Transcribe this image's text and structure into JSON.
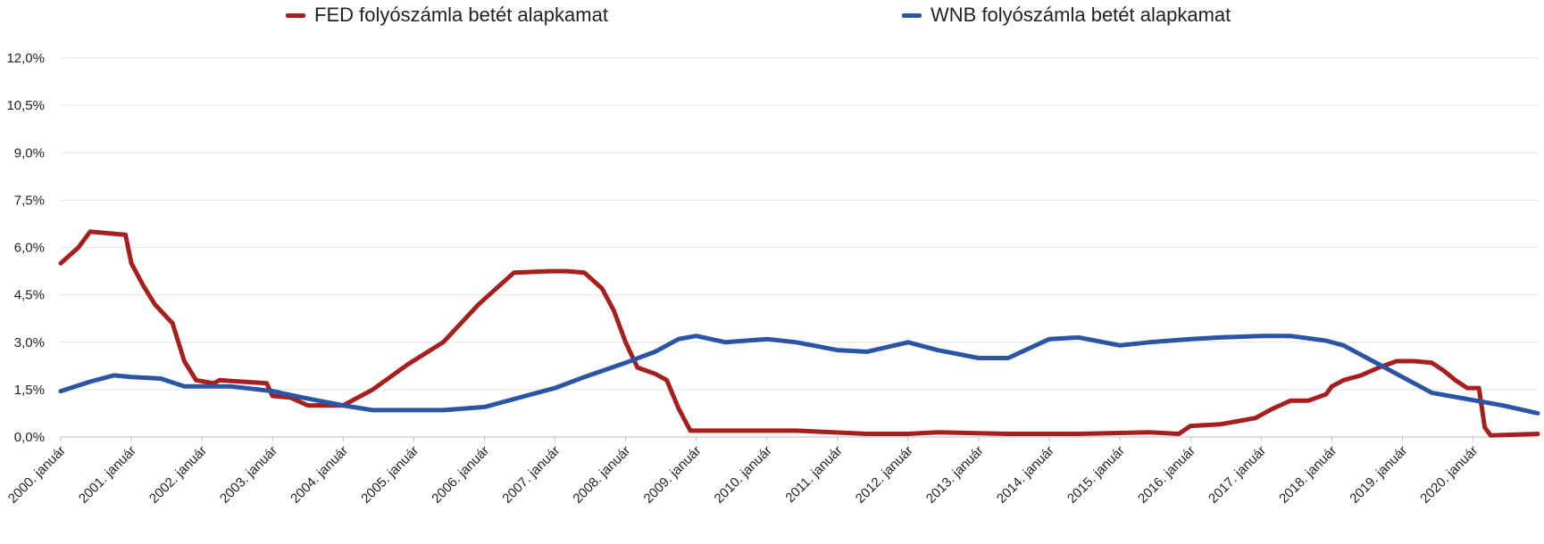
{
  "chart_data": {
    "type": "line",
    "title": "",
    "xlabel": "",
    "ylabel": "",
    "ylim": [
      0,
      12
    ],
    "grid": true,
    "legend_position": "top",
    "y_ticks": [
      "0,0%",
      "1,5%",
      "3,0%",
      "4,5%",
      "6,0%",
      "7,5%",
      "9,0%",
      "10,5%",
      "12,0%"
    ],
    "x_ticks": [
      "2000. január",
      "2001. január",
      "2002. január",
      "2003. január",
      "2004. január",
      "2005. január",
      "2006. január",
      "2007. január",
      "2008. január",
      "2009. január",
      "2010. január",
      "2011. január",
      "2012. január",
      "2013. január",
      "2014. január",
      "2015. január",
      "2016. január",
      "2017. január",
      "2018. január",
      "2019. január",
      "2020. január"
    ],
    "x_start": "2000-01",
    "x_end": "2020-12",
    "series": [
      {
        "name": "FED folyószámla betét alapkamat",
        "color": "#A61E1E",
        "points": [
          [
            "2000-01",
            5.5
          ],
          [
            "2000-04",
            6.0
          ],
          [
            "2000-06",
            6.5
          ],
          [
            "2000-12",
            6.4
          ],
          [
            "2001-01",
            5.5
          ],
          [
            "2001-03",
            4.8
          ],
          [
            "2001-05",
            4.2
          ],
          [
            "2001-08",
            3.6
          ],
          [
            "2001-10",
            2.4
          ],
          [
            "2001-12",
            1.8
          ],
          [
            "2002-03",
            1.7
          ],
          [
            "2002-04",
            1.8
          ],
          [
            "2002-12",
            1.7
          ],
          [
            "2003-01",
            1.3
          ],
          [
            "2003-04",
            1.25
          ],
          [
            "2003-07",
            1.0
          ],
          [
            "2003-12",
            1.0
          ],
          [
            "2004-01",
            1.0
          ],
          [
            "2004-06",
            1.5
          ],
          [
            "2004-12",
            2.3
          ],
          [
            "2005-06",
            3.0
          ],
          [
            "2005-12",
            4.2
          ],
          [
            "2006-06",
            5.2
          ],
          [
            "2006-12",
            5.25
          ],
          [
            "2007-03",
            5.25
          ],
          [
            "2007-06",
            5.2
          ],
          [
            "2007-09",
            4.7
          ],
          [
            "2007-11",
            4.0
          ],
          [
            "2008-01",
            3.0
          ],
          [
            "2008-03",
            2.2
          ],
          [
            "2008-06",
            2.0
          ],
          [
            "2008-08",
            1.8
          ],
          [
            "2008-10",
            0.9
          ],
          [
            "2008-12",
            0.2
          ],
          [
            "2009-06",
            0.2
          ],
          [
            "2010-06",
            0.2
          ],
          [
            "2011-06",
            0.1
          ],
          [
            "2012-01",
            0.1
          ],
          [
            "2012-06",
            0.15
          ],
          [
            "2013-06",
            0.1
          ],
          [
            "2014-06",
            0.1
          ],
          [
            "2015-06",
            0.15
          ],
          [
            "2015-11",
            0.1
          ],
          [
            "2016-01",
            0.35
          ],
          [
            "2016-06",
            0.4
          ],
          [
            "2016-12",
            0.6
          ],
          [
            "2017-03",
            0.9
          ],
          [
            "2017-06",
            1.15
          ],
          [
            "2017-09",
            1.15
          ],
          [
            "2017-12",
            1.35
          ],
          [
            "2018-01",
            1.6
          ],
          [
            "2018-03",
            1.8
          ],
          [
            "2018-06",
            1.95
          ],
          [
            "2018-09",
            2.2
          ],
          [
            "2018-12",
            2.4
          ],
          [
            "2019-03",
            2.4
          ],
          [
            "2019-06",
            2.35
          ],
          [
            "2019-08",
            2.1
          ],
          [
            "2019-10",
            1.8
          ],
          [
            "2019-12",
            1.55
          ],
          [
            "2020-02",
            1.55
          ],
          [
            "2020-03",
            0.3
          ],
          [
            "2020-04",
            0.05
          ],
          [
            "2020-12",
            0.1
          ]
        ]
      },
      {
        "name": "WNB folyószámla betét alapkamat",
        "color": "#2B55A4",
        "points": [
          [
            "2000-01",
            1.45
          ],
          [
            "2000-06",
            1.75
          ],
          [
            "2000-10",
            1.95
          ],
          [
            "2001-01",
            1.9
          ],
          [
            "2001-06",
            1.85
          ],
          [
            "2001-10",
            1.6
          ],
          [
            "2002-01",
            1.6
          ],
          [
            "2002-06",
            1.6
          ],
          [
            "2003-01",
            1.45
          ],
          [
            "2003-06",
            1.25
          ],
          [
            "2004-01",
            1.0
          ],
          [
            "2004-06",
            0.85
          ],
          [
            "2004-12",
            0.85
          ],
          [
            "2005-06",
            0.85
          ],
          [
            "2006-01",
            0.95
          ],
          [
            "2006-06",
            1.2
          ],
          [
            "2007-01",
            1.55
          ],
          [
            "2007-06",
            1.9
          ],
          [
            "2008-01",
            2.35
          ],
          [
            "2008-06",
            2.7
          ],
          [
            "2008-10",
            3.1
          ],
          [
            "2009-01",
            3.2
          ],
          [
            "2009-06",
            3.0
          ],
          [
            "2010-01",
            3.1
          ],
          [
            "2010-06",
            3.0
          ],
          [
            "2011-01",
            2.75
          ],
          [
            "2011-06",
            2.7
          ],
          [
            "2012-01",
            3.0
          ],
          [
            "2012-06",
            2.75
          ],
          [
            "2013-01",
            2.5
          ],
          [
            "2013-06",
            2.5
          ],
          [
            "2014-01",
            3.1
          ],
          [
            "2014-06",
            3.15
          ],
          [
            "2015-01",
            2.9
          ],
          [
            "2015-06",
            3.0
          ],
          [
            "2016-01",
            3.1
          ],
          [
            "2016-06",
            3.15
          ],
          [
            "2017-01",
            3.2
          ],
          [
            "2017-06",
            3.2
          ],
          [
            "2017-12",
            3.05
          ],
          [
            "2018-03",
            2.9
          ],
          [
            "2018-06",
            2.6
          ],
          [
            "2018-09",
            2.3
          ],
          [
            "2018-12",
            2.0
          ],
          [
            "2019-03",
            1.7
          ],
          [
            "2019-06",
            1.4
          ],
          [
            "2019-12",
            1.2
          ],
          [
            "2020-06",
            1.0
          ],
          [
            "2020-12",
            0.75
          ]
        ]
      }
    ]
  }
}
